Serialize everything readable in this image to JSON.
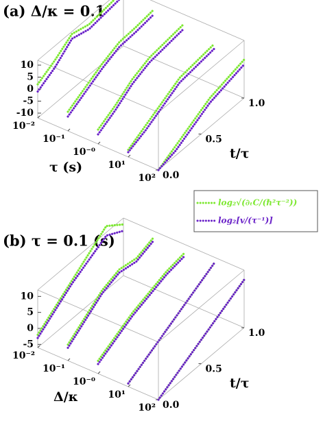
{
  "chart_data": [
    {
      "type": "scatter3d",
      "title": "(a) Δ/κ = 0.1",
      "xlabel": "τ (s)",
      "ylabel": "t/τ",
      "xscale": "log",
      "slices": [
        0.01,
        0.1,
        1,
        10,
        100
      ],
      "t": [
        0,
        0.2,
        0.4,
        0.6,
        0.8,
        1.0
      ],
      "xlim": [
        0.01,
        100
      ],
      "ylim": [
        0,
        1
      ],
      "zlim": [
        -12,
        12
      ],
      "xticks": [
        {
          "value": 0.01,
          "label": "10⁻²"
        },
        {
          "value": 0.1,
          "label": "10⁻¹"
        },
        {
          "value": 1,
          "label": "10⁻⁰"
        },
        {
          "value": 10,
          "label": "10¹"
        },
        {
          "value": 100,
          "label": "10²"
        }
      ],
      "yticks": [
        {
          "value": 0,
          "label": "0.0"
        },
        0.5,
        {
          "value": 1,
          "label": "1.0"
        }
      ],
      "zticks": [
        10,
        5,
        0,
        -5,
        -10
      ],
      "series": [
        {
          "name": "log₂√(∂ₜC/(ℏ²τ⁻²))",
          "color": "#7ee832",
          "values": [
            [
              2,
              6,
              11,
              9,
              10,
              11
            ],
            [
              -4,
              0,
              4,
              7,
              7.5,
              8.5
            ],
            [
              -6,
              -2,
              3,
              6,
              7,
              8
            ],
            [
              -9,
              -5,
              -1,
              3,
              4,
              5
            ],
            [
              -12,
              -8,
              -4,
              0,
              2,
              4
            ]
          ]
        },
        {
          "name": "log₂[v/(τ⁻¹)]",
          "color": "#6a22c8",
          "values": [
            [
              -1,
              3,
              9,
              7,
              8,
              9
            ],
            [
              -6,
              -2,
              2,
              5,
              5.5,
              6.5
            ],
            [
              -8,
              -4,
              1,
              4,
              5,
              6
            ],
            [
              -10,
              -7,
              -3,
              1,
              2,
              3
            ],
            [
              -12,
              -10,
              -6,
              -2,
              0,
              2
            ]
          ]
        }
      ]
    },
    {
      "type": "scatter3d",
      "title": "(b) τ = 0.1 (s)",
      "xlabel": "Δ/κ",
      "ylabel": "t/τ",
      "xscale": "log",
      "slices": [
        0.01,
        0.1,
        1,
        10,
        100
      ],
      "t": [
        0,
        0.2,
        0.4,
        0.6,
        0.8,
        1.0
      ],
      "xlim": [
        0.01,
        100
      ],
      "ylim": [
        0,
        1
      ],
      "zlim": [
        -6,
        12
      ],
      "xticks": [
        {
          "value": 0.01,
          "label": "10⁻²"
        },
        {
          "value": 0.1,
          "label": "10⁻¹"
        },
        {
          "value": 1,
          "label": "10⁻⁰"
        },
        {
          "value": 10,
          "label": "10¹"
        },
        {
          "value": 100,
          "label": "10²"
        }
      ],
      "yticks": [
        {
          "value": 0,
          "label": "0.0"
        },
        0.5,
        {
          "value": 1,
          "label": "1.0"
        }
      ],
      "zticks": [
        10,
        5,
        0,
        -5
      ],
      "series": [
        {
          "color": "#7ee832",
          "values": [
            [
              -2,
              2,
              6,
              10,
              14,
              10
            ],
            [
              -1,
              3,
              7,
              9,
              8,
              10
            ],
            [
              -2,
              1,
              4,
              6,
              8,
              9
            ],
            [
              -5,
              -2,
              1,
              4,
              7,
              10
            ],
            [
              -6,
              -3,
              0,
              3,
              6,
              9
            ]
          ]
        },
        {
          "color": "#6a22c8",
          "values": [
            [
              -3,
              1,
              5,
              8,
              11,
              8
            ],
            [
              -2,
              2,
              6,
              8,
              7,
              9
            ],
            [
              -3,
              0,
              3,
              5,
              7,
              8
            ],
            [
              -5,
              -2,
              1,
              4,
              7,
              10
            ],
            [
              -6,
              -3,
              0,
              3,
              6,
              9
            ]
          ]
        }
      ]
    }
  ]
}
